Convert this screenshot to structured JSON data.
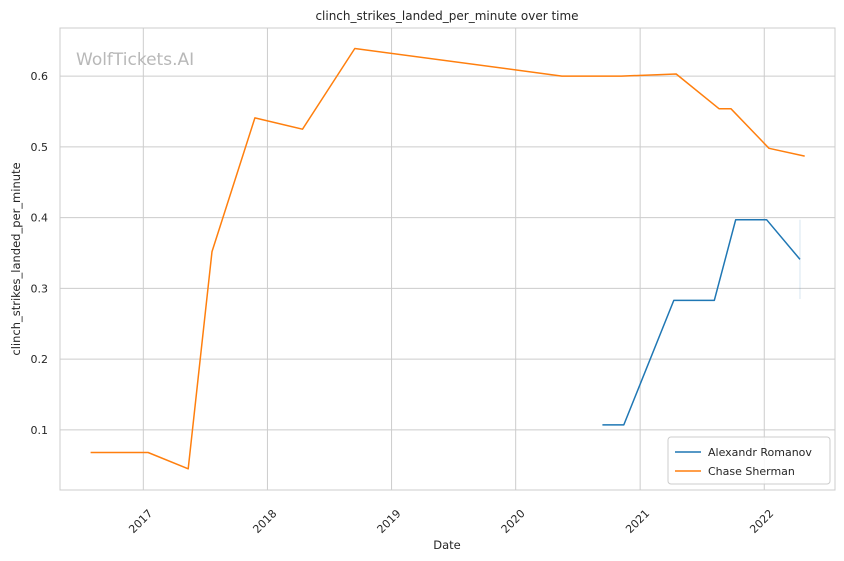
{
  "watermark": "WolfTickets.AI",
  "chart_data": {
    "type": "line",
    "title": "clinch_strikes_landed_per_minute over time",
    "xlabel": "Date",
    "ylabel": "clinch_strikes_landed_per_minute",
    "x_type": "date",
    "xlim": [
      "2016-05-01",
      "2022-07-28"
    ],
    "ylim": [
      0.015,
      0.668
    ],
    "x_ticks": [
      {
        "label": "2017",
        "date": "2017-01-01"
      },
      {
        "label": "2018",
        "date": "2018-01-01"
      },
      {
        "label": "2019",
        "date": "2019-01-01"
      },
      {
        "label": "2020",
        "date": "2020-01-01"
      },
      {
        "label": "2021",
        "date": "2021-01-01"
      },
      {
        "label": "2022",
        "date": "2022-01-01"
      }
    ],
    "y_ticks": [
      "0.1",
      "0.2",
      "0.3",
      "0.4",
      "0.5",
      "0.6"
    ],
    "grid": true,
    "legend_position": "lower-right",
    "series": [
      {
        "name": "Alexandr Romanov",
        "color": "#1f77b4",
        "points": [
          {
            "x": "2020-09-12",
            "y": 0.107
          },
          {
            "x": "2020-11-14",
            "y": 0.107
          },
          {
            "x": "2021-04-10",
            "y": 0.283
          },
          {
            "x": "2021-08-07",
            "y": 0.283
          },
          {
            "x": "2021-10-09",
            "y": 0.397
          },
          {
            "x": "2022-01-08",
            "y": 0.397
          },
          {
            "x": "2022-04-16",
            "y": 0.341
          }
        ],
        "error_band": {
          "x": "2022-04-16",
          "low": 0.285,
          "high": 0.397
        }
      },
      {
        "name": "Chase Sherman",
        "color": "#ff7f0e",
        "points": [
          {
            "x": "2016-07-30",
            "y": 0.068
          },
          {
            "x": "2017-01-15",
            "y": 0.068
          },
          {
            "x": "2017-05-13",
            "y": 0.045
          },
          {
            "x": "2017-07-22",
            "y": 0.352
          },
          {
            "x": "2017-11-25",
            "y": 0.541
          },
          {
            "x": "2018-04-14",
            "y": 0.525
          },
          {
            "x": "2018-09-15",
            "y": 0.639
          },
          {
            "x": "2020-05-16",
            "y": 0.6
          },
          {
            "x": "2020-11-07",
            "y": 0.6
          },
          {
            "x": "2021-04-17",
            "y": 0.603
          },
          {
            "x": "2021-08-21",
            "y": 0.554
          },
          {
            "x": "2021-09-25",
            "y": 0.554
          },
          {
            "x": "2022-01-15",
            "y": 0.498
          },
          {
            "x": "2022-04-30",
            "y": 0.487
          }
        ]
      }
    ]
  }
}
